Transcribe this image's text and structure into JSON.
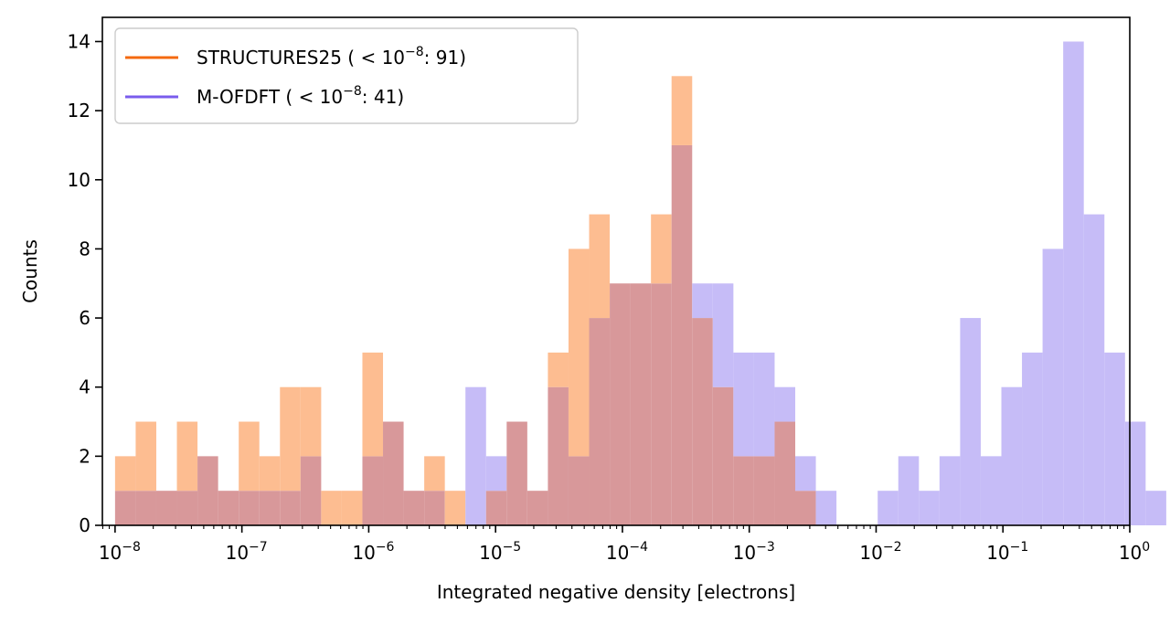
{
  "chart_data": {
    "type": "histogram",
    "title": "",
    "xlabel": "Integrated negative density [electrons]",
    "ylabel": "Counts",
    "xscale": "log",
    "xlim_exp": [
      -8.1,
      0
    ],
    "ylim": [
      0,
      14.7
    ],
    "bin_log10_start": -8.0,
    "bin_log10_width": 0.1625,
    "x_tick_exponents": [
      -8,
      -7,
      -6,
      -5,
      -4,
      -3,
      -2,
      -1,
      0
    ],
    "x_tick_labels": [
      "10",
      "10",
      "10",
      "10",
      "10",
      "10",
      "10",
      "10",
      "10"
    ],
    "x_tick_superscripts": [
      "−8",
      "−7",
      "−6",
      "−5",
      "−4",
      "−3",
      "−2",
      "−1",
      "0"
    ],
    "y_ticks": [
      0,
      2,
      4,
      6,
      8,
      10,
      12,
      14
    ],
    "y_tick_labels": [
      "0",
      "2",
      "4",
      "6",
      "8",
      "10",
      "12",
      "14"
    ],
    "legend_position": "top-left",
    "series": [
      {
        "name": "STRUCTURES25",
        "legend_label": "STRUCTURES25 ( < 10",
        "legend_sup": "−8",
        "legend_suffix": ": 91)",
        "color": "#f46a0f",
        "fill_color": "#fdbd91",
        "values": [
          2,
          3,
          1,
          3,
          2,
          1,
          3,
          2,
          4,
          4,
          1,
          1,
          5,
          3,
          1,
          2,
          1,
          0,
          1,
          3,
          1,
          5,
          8,
          9,
          7,
          7,
          9,
          13,
          6,
          4,
          2,
          2,
          3,
          1,
          0,
          0,
          0,
          0,
          0,
          0,
          0,
          0,
          0,
          0,
          0,
          0,
          0,
          0,
          0,
          0
        ]
      },
      {
        "name": "M-OFDFT",
        "legend_label": "M-OFDFT ( < 10",
        "legend_sup": "−8",
        "legend_suffix": ": 41)",
        "color": "#7a5cec",
        "fill_color": "#c6bcf7",
        "values": [
          1,
          1,
          1,
          1,
          2,
          1,
          1,
          1,
          1,
          2,
          0,
          0,
          2,
          3,
          1,
          1,
          0,
          4,
          2,
          3,
          1,
          4,
          2,
          6,
          7,
          7,
          7,
          11,
          7,
          7,
          5,
          5,
          4,
          2,
          1,
          0,
          0,
          1,
          2,
          1,
          2,
          6,
          2,
          4,
          5,
          8,
          14,
          9,
          5,
          3,
          1
        ]
      }
    ],
    "overlap_color": "#d8989a"
  }
}
